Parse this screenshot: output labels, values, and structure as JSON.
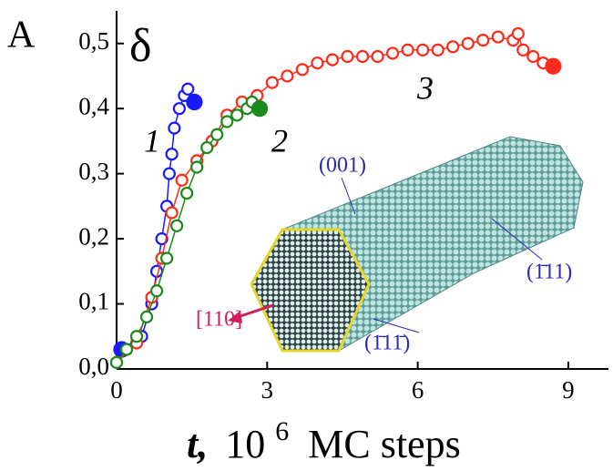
{
  "chart_data": {
    "type": "line",
    "panel_label": "A",
    "y_label": "δ",
    "x_label": {
      "variable": "t,",
      "base": "10",
      "exponent": "6",
      "unit": "MC steps"
    },
    "xlim": [
      0,
      9.8
    ],
    "xticks": [
      0,
      3,
      6,
      9
    ],
    "ylim": [
      0,
      0.55
    ],
    "yticks": [
      {
        "value": 0,
        "label": "0,0"
      },
      {
        "value": 0.1,
        "label": "0,1"
      },
      {
        "value": 0.2,
        "label": "0,2"
      },
      {
        "value": 0.3,
        "label": "0,3"
      },
      {
        "value": 0.4,
        "label": "0,4"
      },
      {
        "value": 0.5,
        "label": "0,5"
      }
    ],
    "series": [
      {
        "name": "1",
        "color": "#1a1aff",
        "filled_ends": [
          "start",
          "end"
        ],
        "x": [
          0.1,
          0.5,
          0.7,
          0.8,
          0.9,
          1.0,
          1.05,
          1.1,
          1.15,
          1.25,
          1.35,
          1.42,
          1.55
        ],
        "values": [
          0.03,
          0.05,
          0.1,
          0.15,
          0.2,
          0.25,
          0.3,
          0.33,
          0.37,
          0.4,
          0.42,
          0.43,
          0.41
        ]
      },
      {
        "name": "3",
        "color": "#ff2a1a",
        "filled_ends": [
          "end"
        ],
        "x": [
          0,
          0.4,
          0.7,
          0.9,
          1.1,
          1.3,
          1.6,
          1.9,
          2.2,
          2.5,
          2.8,
          3.1,
          3.4,
          3.7,
          4.0,
          4.3,
          4.6,
          4.9,
          5.2,
          5.5,
          5.8,
          6.1,
          6.4,
          6.7,
          7.0,
          7.3,
          7.6,
          7.9,
          8.0,
          8.1,
          8.3,
          8.5,
          8.7
        ],
        "values": [
          0.01,
          0.04,
          0.11,
          0.17,
          0.24,
          0.29,
          0.32,
          0.35,
          0.39,
          0.41,
          0.42,
          0.44,
          0.45,
          0.46,
          0.47,
          0.475,
          0.48,
          0.48,
          0.48,
          0.485,
          0.49,
          0.49,
          0.49,
          0.495,
          0.5,
          0.505,
          0.51,
          0.505,
          0.515,
          0.49,
          0.48,
          0.47,
          0.465
        ]
      },
      {
        "name": "2",
        "color": "#1a8a1a",
        "filled_ends": [
          "end"
        ],
        "x": [
          0,
          0.2,
          0.4,
          0.6,
          0.8,
          1.0,
          1.2,
          1.4,
          1.6,
          1.8,
          2.0,
          2.2,
          2.4,
          2.6,
          2.7,
          2.85
        ],
        "values": [
          0.01,
          0.03,
          0.05,
          0.08,
          0.12,
          0.17,
          0.22,
          0.27,
          0.31,
          0.34,
          0.36,
          0.38,
          0.39,
          0.4,
          0.41,
          0.4
        ]
      }
    ],
    "annotations": [
      {
        "text": "(001)",
        "color": "#2a2ab0"
      },
      {
        "text": "(1̄11)",
        "color": "#2a2ab0"
      },
      {
        "text": "(1̄11̄)",
        "color": "#2a2ab0"
      },
      {
        "text": "[110]",
        "color": "#d0205a"
      }
    ]
  }
}
